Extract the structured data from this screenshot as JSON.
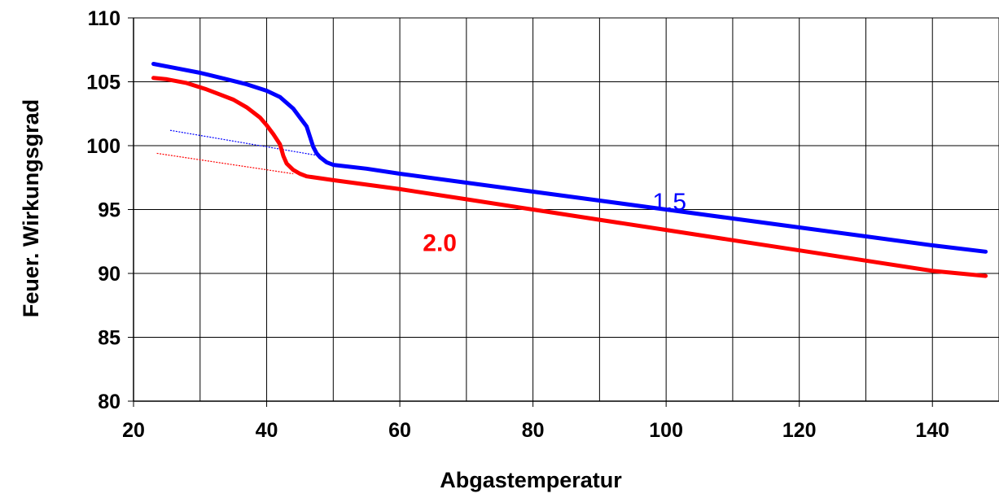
{
  "chart_data": {
    "type": "line",
    "xlabel": "Abgastemperatur",
    "ylabel": "Feuer. Wirkungsgrad",
    "xlim": [
      20,
      150
    ],
    "ylim": [
      80,
      110
    ],
    "xticks": [
      20,
      40,
      60,
      80,
      100,
      120,
      140
    ],
    "xticks_labels": [
      "20",
      "40",
      "60",
      "80",
      "100",
      "120",
      "140"
    ],
    "yticks": [
      80,
      85,
      90,
      95,
      100,
      105,
      110
    ],
    "yticks_labels": [
      "80",
      "85",
      "90",
      "95",
      "100",
      "105",
      "110"
    ],
    "x_gridlines": [
      20,
      30,
      40,
      50,
      60,
      70,
      80,
      90,
      100,
      110,
      120,
      130,
      140,
      150
    ],
    "grid": true,
    "series": [
      {
        "name": "1.5",
        "color": "#0000ff",
        "x": [
          23,
          26,
          30,
          34,
          37,
          40,
          42,
          44,
          45,
          46,
          46.5,
          47,
          47.5,
          48,
          49,
          50,
          55,
          60,
          70,
          80,
          90,
          100,
          110,
          120,
          130,
          140,
          148
        ],
        "y": [
          106.4,
          106.1,
          105.7,
          105.2,
          104.8,
          104.3,
          103.8,
          102.9,
          102.2,
          101.5,
          100.7,
          99.9,
          99.4,
          99.1,
          98.7,
          98.5,
          98.2,
          97.8,
          97.1,
          96.4,
          95.7,
          95.0,
          94.3,
          93.6,
          92.9,
          92.2,
          91.7
        ]
      },
      {
        "name": "2.0",
        "color": "#ff0000",
        "x": [
          23,
          25,
          28,
          31,
          33,
          35,
          37,
          39,
          40,
          41,
          42,
          42.5,
          43,
          44,
          45,
          46,
          50,
          60,
          70,
          80,
          90,
          100,
          110,
          120,
          130,
          140,
          148
        ],
        "y": [
          105.3,
          105.2,
          104.9,
          104.4,
          104.0,
          103.6,
          103.0,
          102.2,
          101.6,
          100.9,
          100.1,
          99.2,
          98.6,
          98.1,
          97.8,
          97.6,
          97.3,
          96.6,
          95.8,
          95.0,
          94.2,
          93.4,
          92.6,
          91.8,
          91.0,
          90.2,
          89.8
        ]
      }
    ],
    "extrapolation_lines": [
      {
        "color": "#0000ff",
        "x": [
          25.5,
          48
        ],
        "y": [
          101.2,
          99.2
        ]
      },
      {
        "color": "#ff0000",
        "x": [
          23.5,
          44
        ],
        "y": [
          99.4,
          97.8
        ]
      }
    ],
    "annotations": [
      {
        "text": "1.5",
        "x": 100.5,
        "y": 95.6,
        "color": "#0000ff",
        "bold": false
      },
      {
        "text": "2.0",
        "x": 66,
        "y": 92.4,
        "color": "#ff0000",
        "bold": true
      }
    ]
  }
}
